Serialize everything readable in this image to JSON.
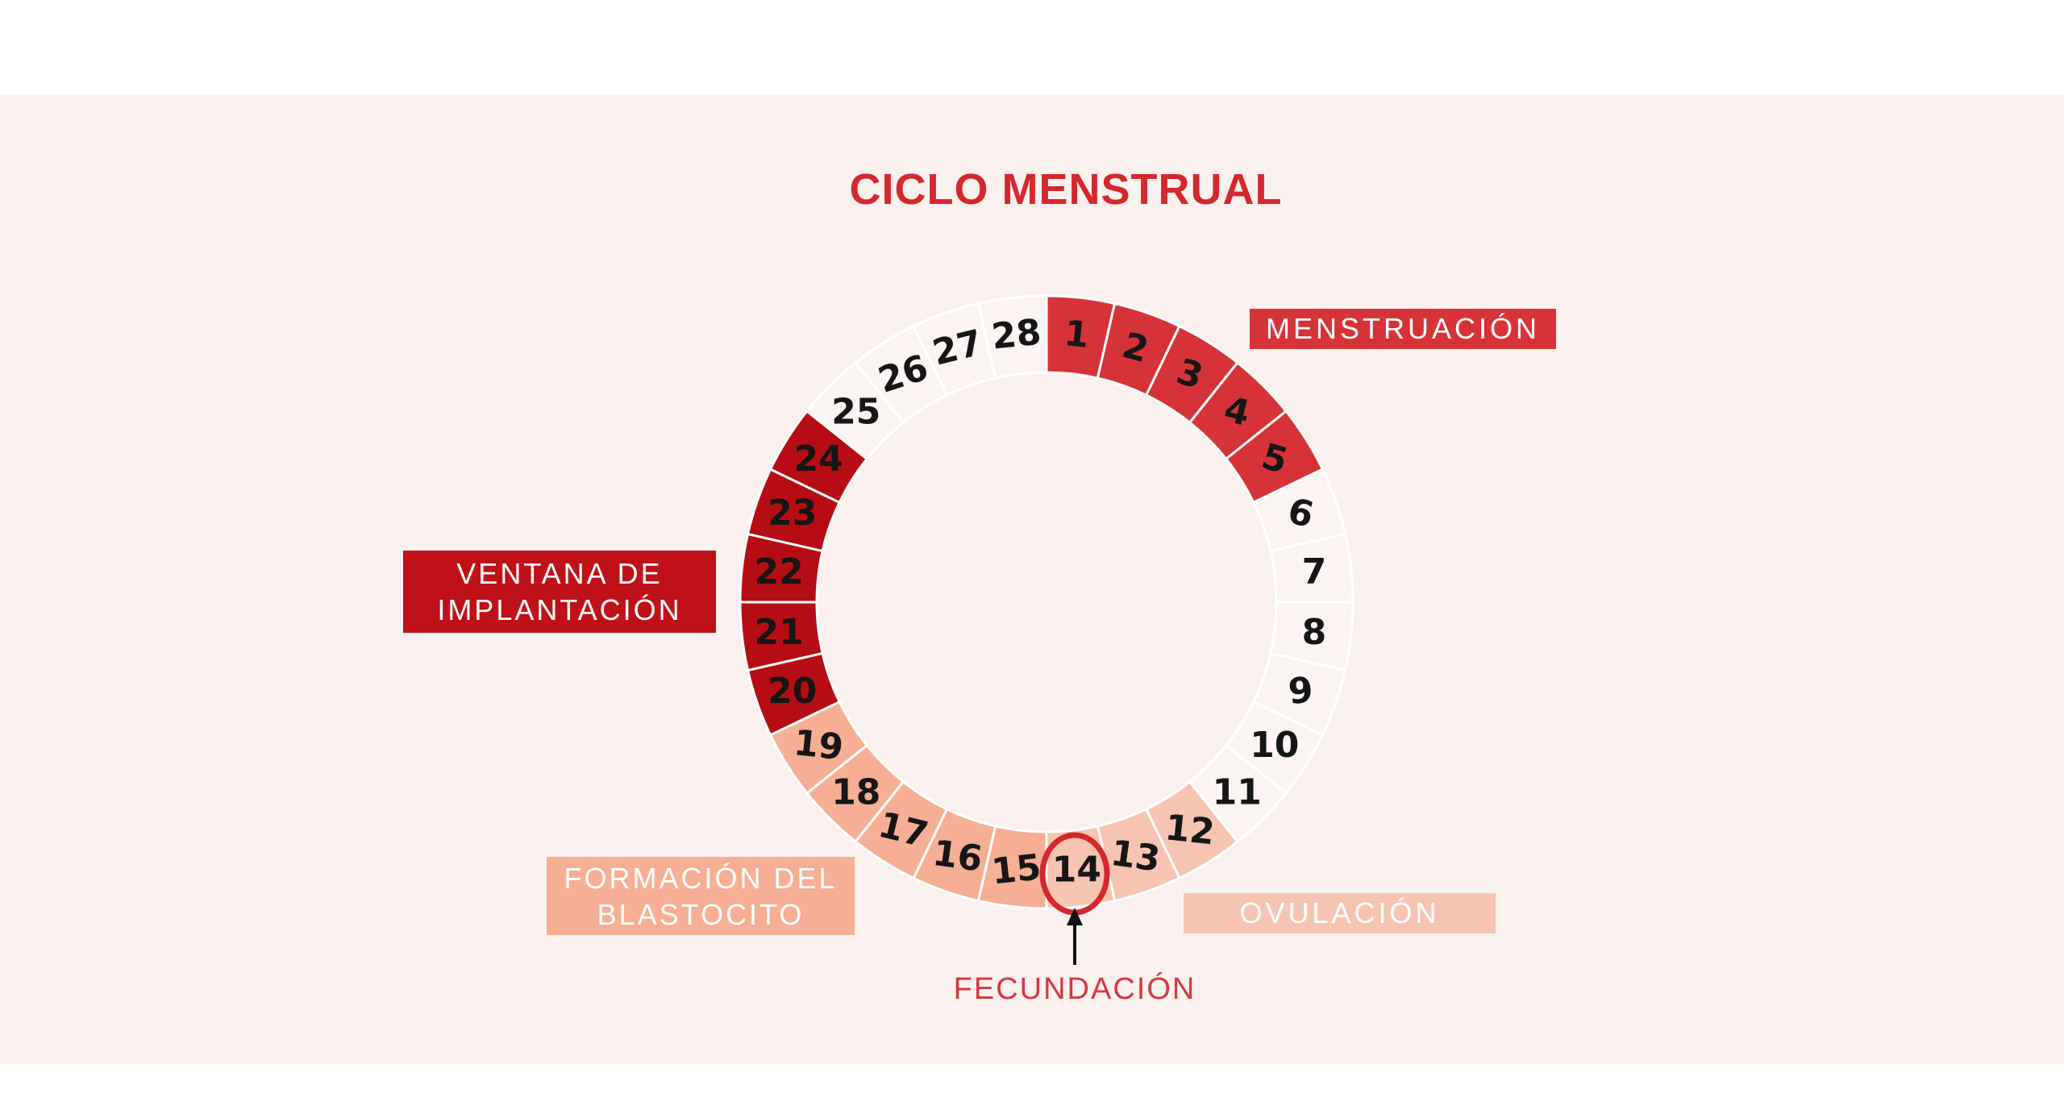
{
  "title": "CICLO MENSTRUAL",
  "badges": {
    "menstruacion": {
      "label": "MENSTRUACIÓN"
    },
    "ventana": {
      "lines": [
        "VENTANA DE",
        "IMPLANTACIÓN"
      ]
    },
    "formacion": {
      "lines": [
        "FORMACIÓN DEL",
        "BLASTOCITO"
      ]
    },
    "ovulacion": {
      "label": "OVULACIÓN"
    }
  },
  "annotation": {
    "label": "FECUNDACIÓN",
    "day": 14
  },
  "cycle": {
    "total_days": 28,
    "phases": [
      {
        "label": "MENSTRUACIÓN",
        "day_start": 1,
        "day_end": 5,
        "color": "red"
      },
      {
        "label": "",
        "day_start": 6,
        "day_end": 11,
        "color": "pale"
      },
      {
        "label": "OVULACIÓN",
        "day_start": 12,
        "day_end": 14,
        "color": "light_salmon"
      },
      {
        "label": "FORMACIÓN DEL BLASTOCITO",
        "day_start": 15,
        "day_end": 19,
        "color": "salmon"
      },
      {
        "label": "VENTANA DE IMPLANTACIÓN",
        "day_start": 20,
        "day_end": 24,
        "color": "dark_red"
      },
      {
        "label": "",
        "day_start": 25,
        "day_end": 28,
        "color": "pale"
      }
    ]
  },
  "colors": {
    "background": "#FAF1EF",
    "band_white": "#FFFFFF",
    "red": "#D63338",
    "title_red": "#D4282E",
    "dark_red": "#B50D13",
    "dark_red_badge": "#BF1118",
    "salmon": "#F6AF94",
    "light_salmon": "#F8C4B2",
    "pale": "#FBF4F2",
    "number_black": "#161616",
    "fecundacion_red": "#D5383D",
    "arrow_black": "#111111",
    "badge_text": "#FFFFFF"
  }
}
